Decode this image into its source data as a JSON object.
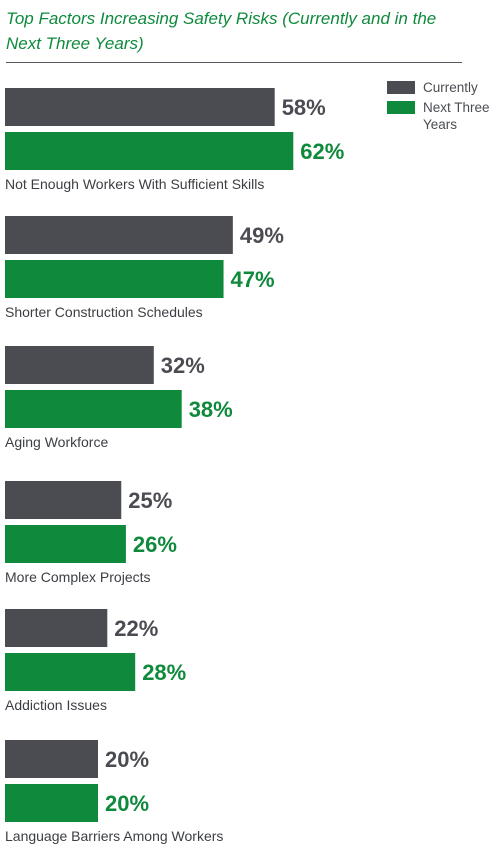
{
  "colors": {
    "currently": "#4b4c52",
    "next": "#0f8a3c",
    "title": "#0f8a3c"
  },
  "chart_data": {
    "type": "bar",
    "orientation": "horizontal",
    "title": "Top Factors Increasing Safety Risks (Currently and in the Next Three Years)",
    "categories": [
      "Not Enough Workers With Sufficient Skills",
      "Shorter Construction Schedules",
      "Aging Workforce",
      "More Complex Projects",
      "Addiction Issues",
      "Language Barriers Among Workers"
    ],
    "series": [
      {
        "name": "Currently",
        "values": [
          58,
          49,
          32,
          25,
          22,
          20
        ],
        "labels": [
          "58%",
          "49%",
          "32%",
          "25%",
          "22%",
          "20%"
        ]
      },
      {
        "name": "Next Three Years",
        "values": [
          62,
          47,
          38,
          26,
          28,
          20
        ],
        "labels": [
          "62%",
          "47%",
          "38%",
          "26%",
          "28%",
          "20%"
        ]
      }
    ],
    "xlabel": "",
    "ylabel": "",
    "xlim": [
      0,
      100
    ],
    "grid": false,
    "legend_position": "top-right"
  }
}
